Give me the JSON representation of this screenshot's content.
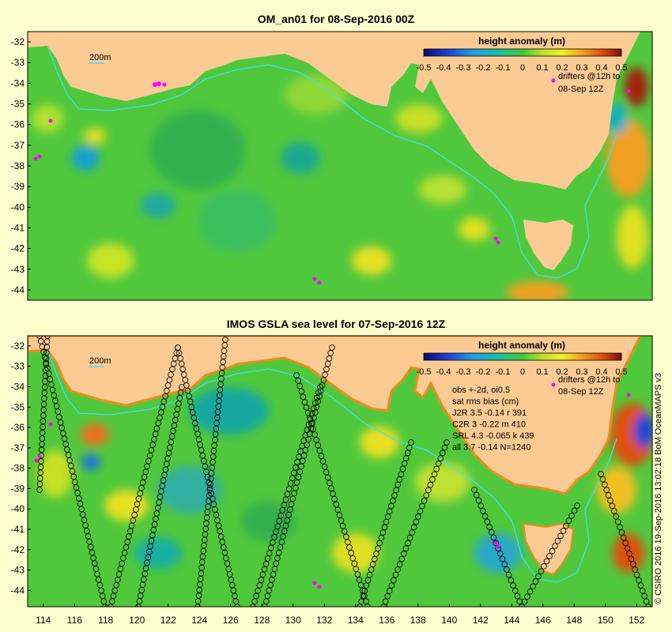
{
  "colors": {
    "page_bg": "#ffffd0",
    "land": "#fbcb93",
    "ocean_base": "#50c83c",
    "drifter": "#ff00ff",
    "contour_200m": "#40e0ff",
    "track_circle": "#111111"
  },
  "panels": [
    {
      "title": "OM_an01 for 08-Sep-2016 00Z",
      "scale_label": "200m",
      "colorbar_title": "height anomaly (m)",
      "colorbar_ticks": [
        "-0.5",
        "-0.4",
        "-0.3",
        "-0.2",
        "-0.1",
        "0",
        "0.1",
        "0.2",
        "0.3",
        "0.4",
        "0.5"
      ],
      "drifter_legend": [
        "drifters @12h to",
        "08-Sep 12Z"
      ],
      "stats": []
    },
    {
      "title": "IMOS GSLA sea level  for 07-Sep-2016 12Z",
      "scale_label": "200m",
      "colorbar_title": "height anomaly (m)",
      "colorbar_ticks": [
        "-0.5",
        "-0.4",
        "-0.3",
        "-0.2",
        "-0.1",
        "0",
        "0.1",
        "0.2",
        "0.3",
        "0.4",
        "0.5"
      ],
      "drifter_legend": [
        "drifters @12h to",
        "08-Sep 12Z"
      ],
      "stats": [
        "obs +-2d, oi0.5",
        "sat rms bias (cm)",
        "J2R   3.5 -0.14 r 391",
        "C2R    3 -0.22 m 410",
        "SRL   4.3 -0.065 k 439",
        "all   3.7 -0.14 N=1240"
      ]
    }
  ],
  "axes": {
    "lon_range": [
      113,
      153
    ],
    "lat_range": [
      -45,
      -31.5
    ],
    "lat_ticks": [
      -32,
      -33,
      -34,
      -35,
      -36,
      -37,
      -38,
      -39,
      -40,
      -41,
      -42,
      -43,
      -44
    ],
    "lon_ticks": [
      114,
      116,
      118,
      120,
      122,
      124,
      126,
      128,
      130,
      132,
      134,
      136,
      138,
      140,
      142,
      144,
      146,
      148,
      150,
      152
    ]
  },
  "credit": "© CSIRO 2016  19-Sep-2016 13:02:18 BoM OceanMAPS v3"
}
